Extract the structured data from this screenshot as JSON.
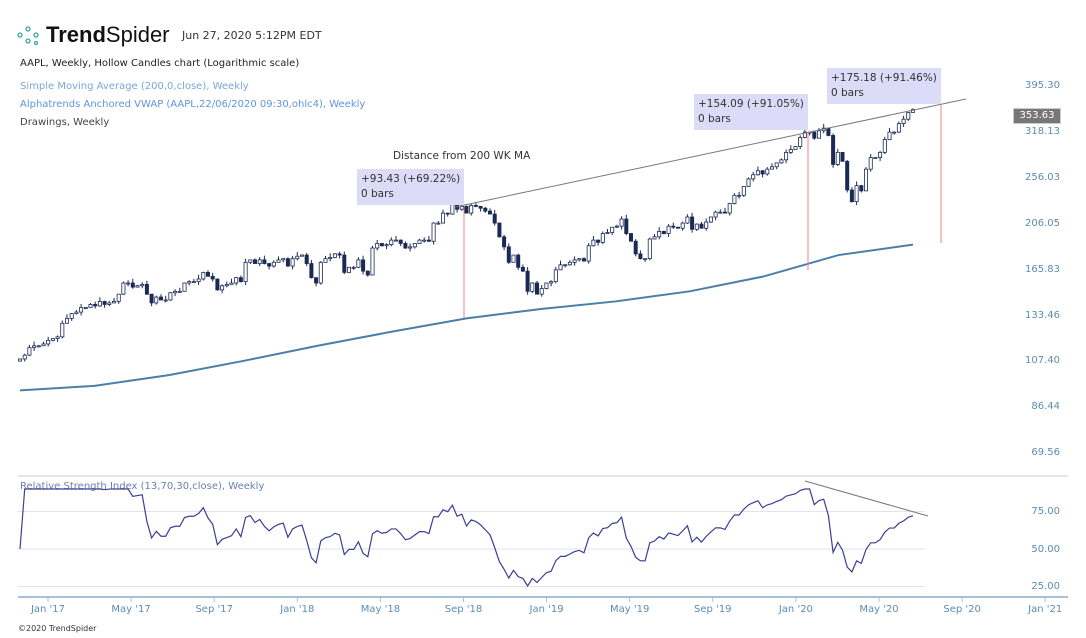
{
  "header": {
    "brand_bold": "Trend",
    "brand_light": "Spider",
    "timestamp": "Jun 27, 2020 5:12PM EDT"
  },
  "legend": {
    "main": "AAPL, Weekly, Hollow Candles chart (Logarithmic scale)",
    "sma": "Simple Moving Average (200,0,close), Weekly",
    "vwap": "Alphatrends Anchored VWAP (AAPL,22/06/2020 09:30,ohlc4), Weekly",
    "drawings": "Drawings, Weekly",
    "rsi": "Relative Strength Index (13,70,30,close), Weekly"
  },
  "annotations": {
    "label": "Distance from 200 WK MA",
    "boxes": [
      {
        "line1": "+93.43 (+69.22%)",
        "line2": "0 bars"
      },
      {
        "line1": "+154.09 (+91.05%)",
        "line2": "0 bars"
      },
      {
        "line1": "+175.18 (+91.46%)",
        "line2": "0 bars"
      }
    ]
  },
  "footer": "©2020 TrendSpider",
  "colors": {
    "candle": "#1b2a55",
    "sma": "#4a7fa8",
    "rsi": "#3b3f95",
    "trend": "#777777",
    "distance": "#f08080",
    "annotation_bg": "#dcdcf8",
    "axis": "#5b8db3"
  },
  "chart_data": {
    "type": "candlestick",
    "symbol": "AAPL",
    "interval": "Weekly",
    "scale": "log",
    "last_price": "353.63",
    "y_ticks": [
      "395.30",
      "318.13",
      "256.03",
      "206.05",
      "165.83",
      "133.46",
      "107.40",
      "86.44",
      "69.56"
    ],
    "x_ticks": [
      "Jan '17",
      "May '17",
      "Sep '17",
      "Jan '18",
      "May '18",
      "Sep '18",
      "Jan '19",
      "May '19",
      "Sep '19",
      "Jan '20",
      "May '20",
      "Sep '20",
      "Jan '21"
    ],
    "closes": [
      109,
      111,
      115,
      116,
      116,
      117,
      119,
      120,
      121,
      129,
      132,
      135,
      136,
      139,
      139,
      141,
      140,
      143,
      141,
      142,
      143,
      148,
      156,
      156,
      153,
      154,
      155,
      148,
      142,
      146,
      144,
      144,
      149,
      150,
      150,
      156,
      157,
      157,
      159,
      164,
      161,
      159,
      151,
      154,
      155,
      156,
      160,
      157,
      172,
      174,
      171,
      174,
      171,
      169,
      172,
      174,
      175,
      169,
      175,
      177,
      178,
      171,
      160,
      156,
      172,
      175,
      176,
      179,
      178,
      164,
      168,
      168,
      174,
      165,
      162,
      184,
      188,
      186,
      187,
      191,
      191,
      188,
      184,
      185,
      188,
      191,
      191,
      190,
      207,
      207,
      217,
      216,
      227,
      221,
      224,
      217,
      225,
      224,
      222,
      219,
      216,
      207,
      194,
      185,
      172,
      178,
      168,
      165,
      150,
      156,
      148,
      152,
      156,
      157,
      166,
      170,
      170,
      172,
      174,
      175,
      173,
      186,
      191,
      189,
      197,
      198,
      203,
      204,
      211,
      197,
      190,
      179,
      175,
      175,
      192,
      194,
      199,
      197,
      204,
      203,
      202,
      207,
      213,
      201,
      206,
      202,
      208,
      213,
      218,
      218,
      217,
      227,
      236,
      236,
      246,
      255,
      260,
      265,
      261,
      267,
      270,
      275,
      279,
      289,
      293,
      297,
      310,
      318,
      318,
      309,
      320,
      324,
      313,
      273,
      289,
      277,
      242,
      229,
      247,
      241,
      267,
      282,
      282,
      289,
      307,
      318,
      318,
      331,
      338,
      349,
      353.63
    ],
    "sma_200": [
      94,
      96,
      101,
      108,
      116,
      124,
      132,
      138,
      143,
      150,
      161,
      178,
      187
    ],
    "rsi_ticks": [
      "75.00",
      "50.00",
      "25.00"
    ],
    "rsi_period": 13
  }
}
